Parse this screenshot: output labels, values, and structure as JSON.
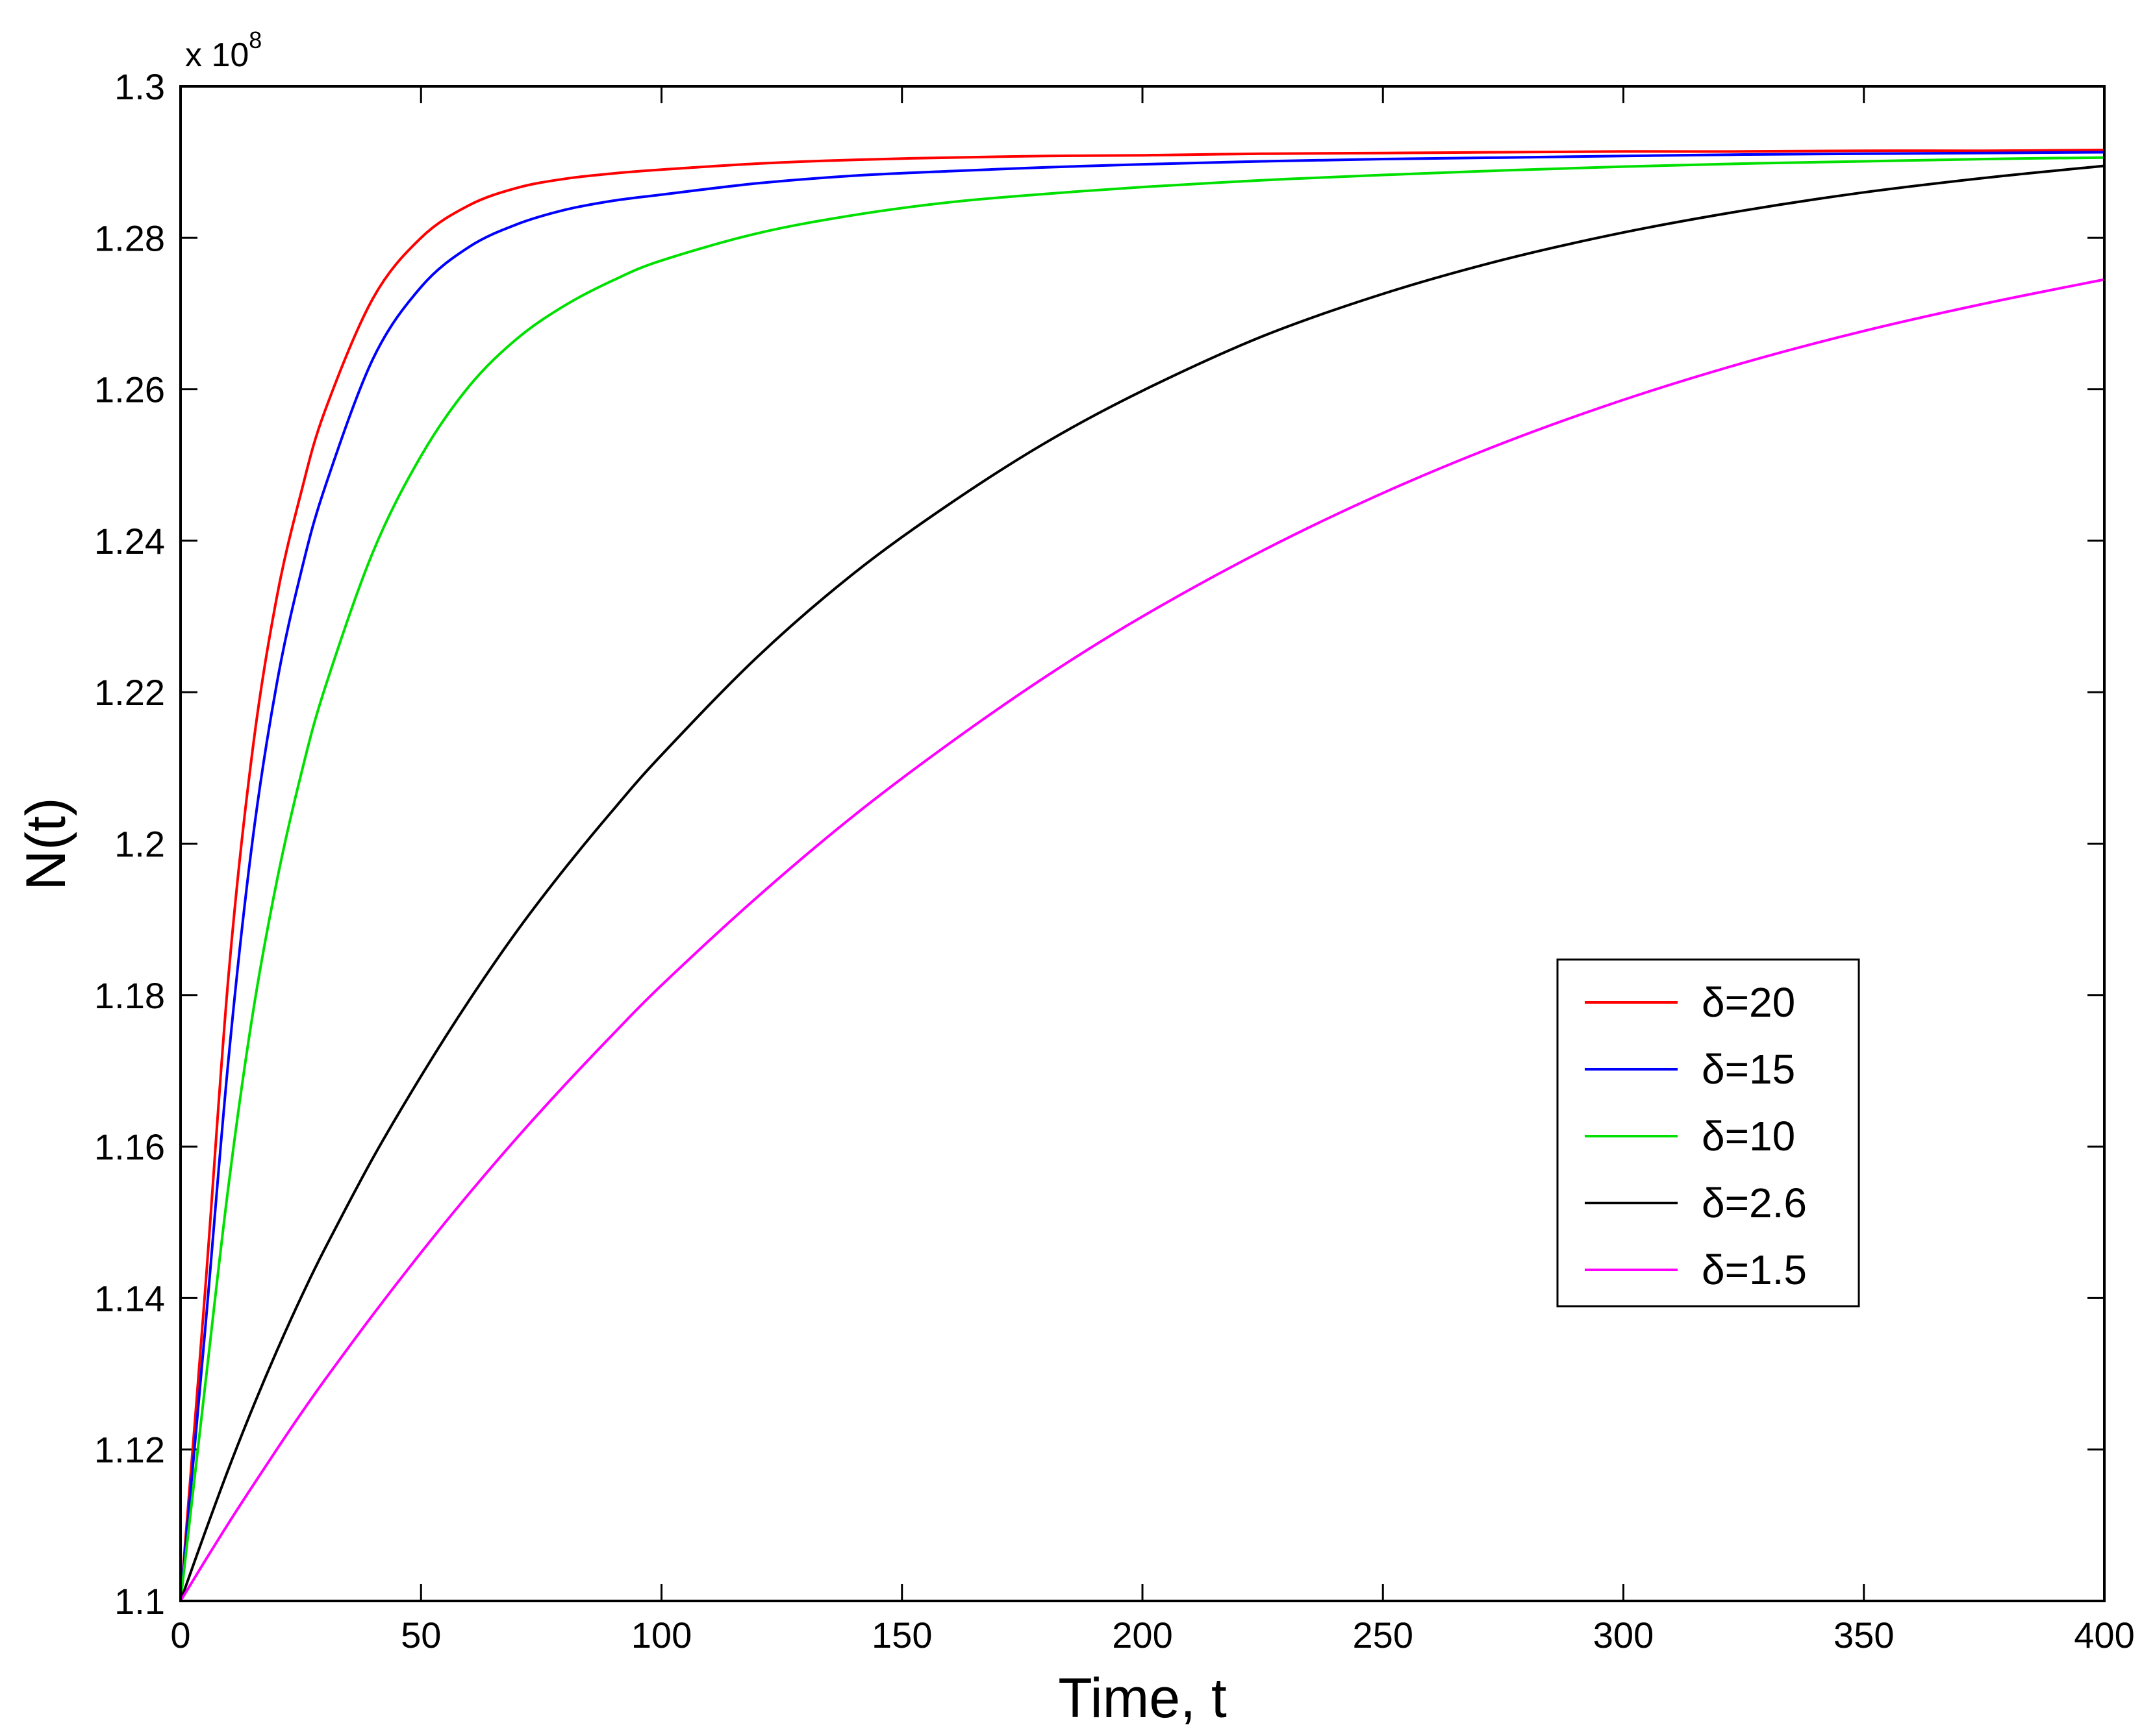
{
  "chart_data": {
    "type": "line",
    "title": "",
    "xlabel": "Time, t",
    "ylabel": "N(t)",
    "y_multiplier": "x 10",
    "y_multiplier_exponent": "8",
    "xlim": [
      0,
      400
    ],
    "ylim": [
      1.1,
      1.3
    ],
    "x_ticks": [
      "0",
      "50",
      "100",
      "150",
      "200",
      "250",
      "300",
      "350",
      "400"
    ],
    "y_ticks": [
      "1.1",
      "1.12",
      "1.14",
      "1.16",
      "1.18",
      "1.2",
      "1.22",
      "1.24",
      "1.26",
      "1.28",
      "1.3"
    ],
    "grid": false,
    "legend_position": "center-right",
    "x": [
      0,
      5,
      10,
      15,
      20,
      25,
      30,
      40,
      50,
      60,
      70,
      80,
      90,
      100,
      120,
      140,
      160,
      180,
      200,
      225,
      250,
      275,
      300,
      325,
      350,
      375,
      400
    ],
    "series": [
      {
        "name": "δ=20",
        "color": "#ff0000",
        "values": [
          1.1,
          1.14,
          1.1828,
          1.2125,
          1.2325,
          1.2462,
          1.2571,
          1.272,
          1.28,
          1.2843,
          1.2866,
          1.2878,
          1.2885,
          1.289,
          1.2898,
          1.2903,
          1.2906,
          1.2908,
          1.2909,
          1.2911,
          1.2912,
          1.2913,
          1.2914,
          1.2914,
          1.2915,
          1.2915,
          1.2916
        ]
      },
      {
        "name": "δ=15",
        "color": "#0000ff",
        "values": [
          1.1,
          1.135,
          1.1718,
          1.2006,
          1.2211,
          1.2357,
          1.247,
          1.264,
          1.2735,
          1.2788,
          1.2818,
          1.2837,
          1.2849,
          1.2857,
          1.2872,
          1.2882,
          1.2888,
          1.2893,
          1.2897,
          1.2901,
          1.2904,
          1.2906,
          1.2908,
          1.291,
          1.2911,
          1.2912,
          1.2913
        ]
      },
      {
        "name": "δ=10",
        "color": "#00e000",
        "values": [
          1.1,
          1.1278,
          1.155,
          1.1775,
          1.195,
          1.209,
          1.2205,
          1.2385,
          1.2512,
          1.2604,
          1.2667,
          1.2711,
          1.2744,
          1.277,
          1.2806,
          1.283,
          1.2847,
          1.2858,
          1.2867,
          1.2876,
          1.2883,
          1.2889,
          1.2894,
          1.2898,
          1.2901,
          1.2904,
          1.2906
        ]
      },
      {
        "name": "δ=2.6",
        "color": "#000000",
        "values": [
          1.1,
          1.1089,
          1.1175,
          1.1255,
          1.133,
          1.14,
          1.1465,
          1.1585,
          1.1693,
          1.1793,
          1.1885,
          1.1968,
          1.2045,
          1.2117,
          1.2247,
          1.2357,
          1.2449,
          1.253,
          1.2598,
          1.267,
          1.2726,
          1.2771,
          1.2807,
          1.2836,
          1.286,
          1.2879,
          1.2895
        ]
      },
      {
        "name": "δ=1.5",
        "color": "#ff00ff",
        "values": [
          1.1,
          1.1052,
          1.1103,
          1.1152,
          1.12,
          1.1247,
          1.1292,
          1.1378,
          1.146,
          1.1538,
          1.1612,
          1.1682,
          1.1749,
          1.1813,
          1.193,
          1.2037,
          1.2133,
          1.2221,
          1.23,
          1.2387,
          1.2463,
          1.2529,
          1.2586,
          1.2635,
          1.2677,
          1.2713,
          1.2745
        ]
      }
    ]
  }
}
